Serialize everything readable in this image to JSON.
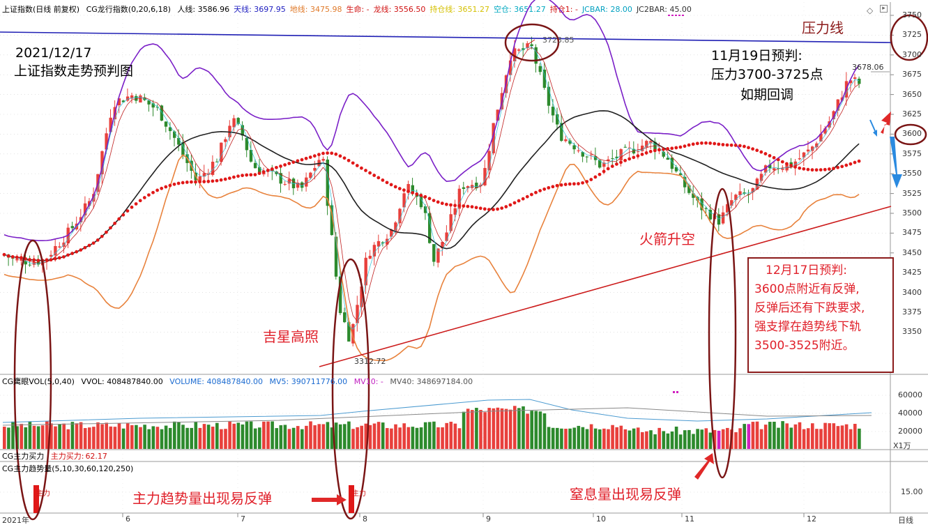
{
  "header": {
    "symbol": "上证指数(日线 前复权)",
    "indicator": "CG龙行指数(0,20,6,18)",
    "fields": [
      {
        "label": "人线:",
        "value": "3586.96",
        "color": "#000000"
      },
      {
        "label": "天线:",
        "value": "3697.95",
        "color": "#2020c0"
      },
      {
        "label": "地线:",
        "value": "3475.98",
        "color": "#e07a2a"
      },
      {
        "label": "生命:",
        "value": "-",
        "color": "#d01010"
      },
      {
        "label": "龙线:",
        "value": "3556.50",
        "color": "#d01010"
      },
      {
        "label": "持仓线:",
        "value": "3651.27",
        "color": "#d4c000"
      },
      {
        "label": "空仓:",
        "value": "3651.27",
        "color": "#00a8c0"
      },
      {
        "label": "持仓1:",
        "value": "-",
        "color": "#d01010"
      },
      {
        "label": "JCBAR:",
        "value": "28.00",
        "color": "#00a0c0"
      },
      {
        "label": "JC2BAR:",
        "value": "45.00",
        "color": "#333333"
      }
    ]
  },
  "price_axis": [
    "3750",
    "3725",
    "3700",
    "3675",
    "3650",
    "3625",
    "3600",
    "3575",
    "3550",
    "3525",
    "3500",
    "3475",
    "3450",
    "3425",
    "3400",
    "3375",
    "3350"
  ],
  "annotations": {
    "date": "2021/12/17",
    "title": "上证指数走势预判图",
    "pressure_line": "压力线",
    "nov_prediction": [
      "11月19日预判:",
      "压力3700-3725点",
      "如期回调"
    ],
    "lucky_star": "吉星高照",
    "rocket": "火箭升空",
    "main_trend": "主力趋势量出现易反弹",
    "suffocation": "窒息量出现易反弹",
    "dec_prediction": [
      "12月17日预判:",
      "3600点附近有反弹,",
      "反弹后还有下跌要求,",
      "强支撑在趋势线下轨",
      "3500-3525附近。"
    ]
  },
  "price_labels": {
    "high": "3723.85",
    "low": "3312.72",
    "last": "3678.06"
  },
  "volume": {
    "indicator": "CG鹰眼VOL(5,0,40)",
    "vvol": "VVOL: 408487840.00",
    "volume": "VOLUME: 408487840.00",
    "mv5": "MV5: 390711776.00",
    "mv10": "MV10: -",
    "mv40": "MV40: 348697184.00",
    "axis": [
      "60000",
      "40000",
      "20000"
    ],
    "unit": "X1万"
  },
  "buy_power": {
    "indicator": "CG主力买力",
    "value_label": "主力买力:",
    "value": "62.17"
  },
  "trend_volume": {
    "indicator": "CG主力趋势量(5,10,30,60,120,250)",
    "axis": "15.00",
    "bar_label": "主力"
  },
  "time_axis": {
    "start": "2021年",
    "months": [
      "6",
      "7",
      "8",
      "9",
      "10",
      "11",
      "12"
    ],
    "period": "日线"
  },
  "colors": {
    "up": "#e8403c",
    "down": "#2d8a2d",
    "upper": "#7a1fc7",
    "lower": "#e8823c",
    "mid": "#202020",
    "dragon": "#e01818",
    "trend": "#cc1c1c",
    "pressure": "#1f1fb4",
    "ellipse": "#7a1515",
    "arrow_blue": "#2a8ae0"
  }
}
